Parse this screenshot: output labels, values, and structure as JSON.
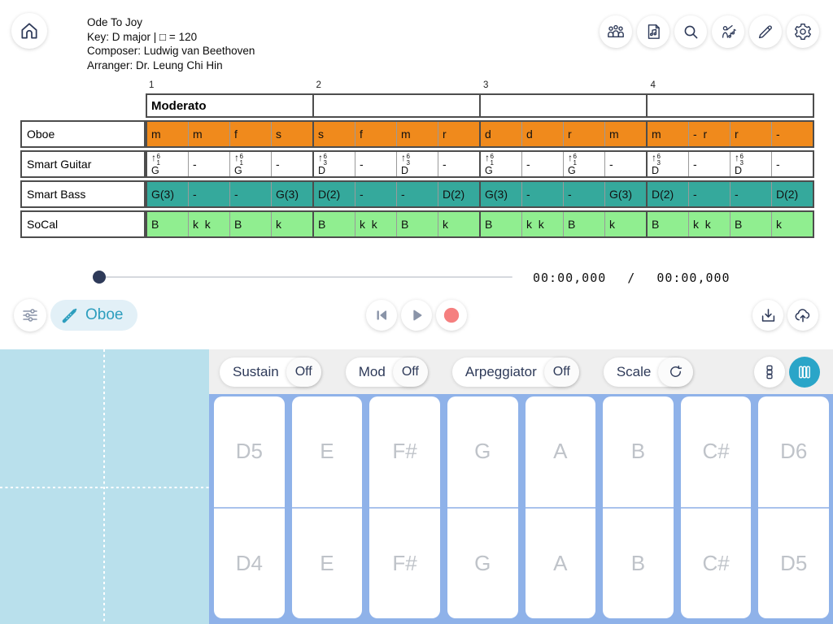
{
  "header": {
    "title": "Ode To Joy",
    "key_line": "Key: D major | □ = 120",
    "composer_line": "Composer: Ludwig van Beethoven",
    "arranger_line": "Arranger: Dr. Leung Chi Hin",
    "toolbar_icons": [
      "band-members-icon",
      "score-scroll-icon",
      "search-icon",
      "composer-icon",
      "pencil-icon",
      "settings-gear-icon"
    ]
  },
  "score": {
    "measure_numbers": [
      "1",
      "2",
      "3",
      "4"
    ],
    "tempo": "Moderato",
    "beats_per_measure": 4,
    "tracks": [
      {
        "name": "Oboe",
        "bg": "#F08A1C",
        "cells": [
          "m",
          "m",
          "f",
          "s",
          "s",
          "f",
          "m",
          "r",
          "d",
          "d",
          "r",
          "m",
          "m",
          "-  r",
          "r",
          "-"
        ]
      },
      {
        "name": "Smart Guitar",
        "bg": "#FFFFFF",
        "cells": [
          {
            "arrow": "↑",
            "upper": "6",
            "lower": "1",
            "root": "G"
          },
          "-",
          {
            "arrow": "↑",
            "upper": "6",
            "lower": "1",
            "root": "G"
          },
          "-",
          {
            "arrow": "↑",
            "upper": "6",
            "lower": "3",
            "root": "D"
          },
          "-",
          {
            "arrow": "↑",
            "upper": "6",
            "lower": "3",
            "root": "D"
          },
          "-",
          {
            "arrow": "↑",
            "upper": "6",
            "lower": "1",
            "root": "G"
          },
          "-",
          {
            "arrow": "↑",
            "upper": "6",
            "lower": "1",
            "root": "G"
          },
          "-",
          {
            "arrow": "↑",
            "upper": "6",
            "lower": "3",
            "root": "D"
          },
          "-",
          {
            "arrow": "↑",
            "upper": "6",
            "lower": "3",
            "root": "D"
          },
          "-"
        ]
      },
      {
        "name": "Smart Bass",
        "bg": "#35A99C",
        "cells": [
          "G(3)",
          "-",
          "-",
          "G(3)",
          "D(2)",
          "-",
          "-",
          "D(2)",
          "G(3)",
          "-",
          "-",
          "G(3)",
          "D(2)",
          "-",
          "-",
          "D(2)"
        ]
      },
      {
        "name": "SoCal",
        "bg": "#90EE90",
        "cells": [
          "B",
          "k  k",
          "B",
          "k",
          "B",
          "k  k",
          "B",
          "k",
          "B",
          "k  k",
          "B",
          "k",
          "B",
          "k  k",
          "B",
          "k"
        ]
      }
    ]
  },
  "transport": {
    "current_time": "00:00,000",
    "separator": "/",
    "total_time": "00:00,000",
    "instrument": "Oboe",
    "buttons": [
      "mixer-icon",
      "skip-to-start-icon",
      "play-icon",
      "record-icon",
      "download-icon",
      "cloud-upload-icon"
    ]
  },
  "keyboard": {
    "controls": [
      {
        "label": "Sustain",
        "state": "Off"
      },
      {
        "label": "Mod",
        "state": "Off"
      },
      {
        "label": "Arpeggiator",
        "state": "Off"
      },
      {
        "label": "Scale",
        "state_icon": "refresh-icon"
      }
    ],
    "layout_toggles": [
      "rows-layout-icon",
      "columns-layout-icon"
    ],
    "active_toggle": "columns-layout-icon",
    "keys_top": [
      "D5",
      "E",
      "F#",
      "G",
      "A",
      "B",
      "C#",
      "D6"
    ],
    "keys_bottom": [
      "D4",
      "E",
      "F#",
      "G",
      "A",
      "B",
      "C#",
      "D5"
    ]
  },
  "colors": {
    "accent_teal": "#2AA5C8",
    "icon_navy": "#2E3A59",
    "oboe_row": "#F08A1C",
    "bass_row": "#35A99C",
    "socal_row": "#90EE90",
    "key_bed": "#8FB2E9",
    "touch_pad": "#B9E0EC",
    "record_red": "#F57F7F"
  }
}
